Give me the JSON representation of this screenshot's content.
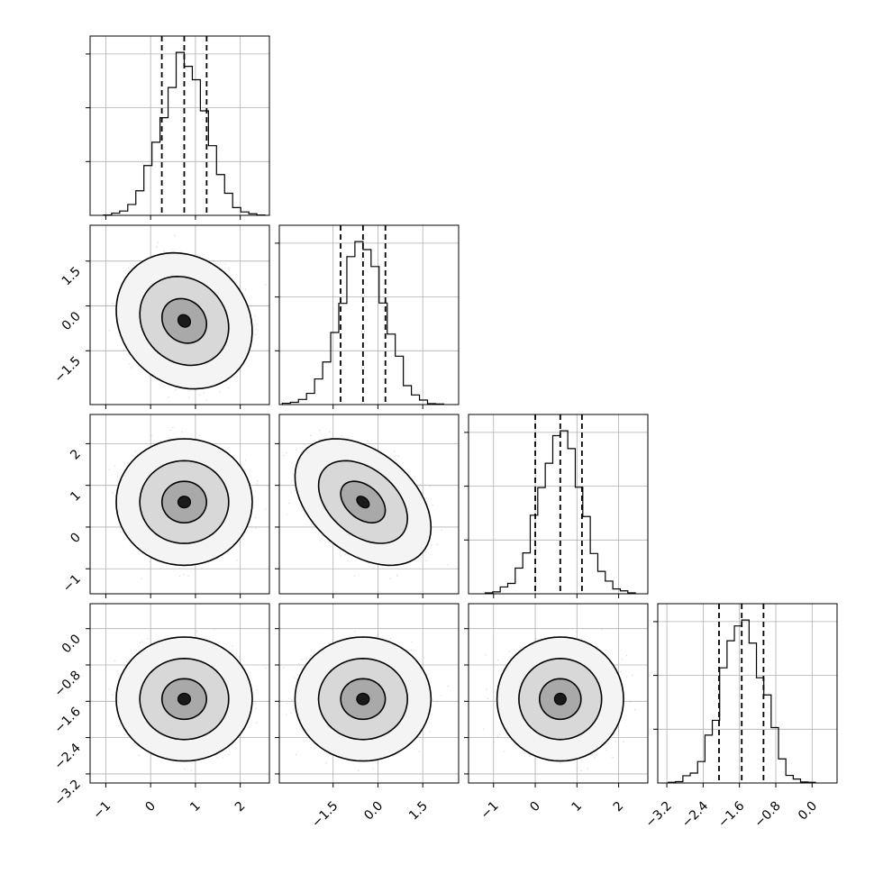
{
  "chart_data": {
    "type": "scatter",
    "grid": true,
    "parameters": [
      {
        "mean": 0.75,
        "sd": 0.5,
        "range": [
          -1.35,
          2.65
        ],
        "quantiles": [
          0.25,
          0.75,
          1.25
        ],
        "ticks": [
          -1,
          0,
          1,
          2
        ],
        "tick_labels": [
          "−1",
          "0",
          "1",
          "2"
        ]
      },
      {
        "mean": -0.5,
        "sd": 0.75,
        "range": [
          -3.3,
          2.7
        ],
        "quantiles": [
          -1.25,
          -0.5,
          0.25
        ],
        "ticks": [
          -1.5,
          0.0,
          1.5
        ],
        "tick_labels": [
          "−1.5",
          "0.0",
          "1.5"
        ]
      },
      {
        "mean": 0.6,
        "sd": 0.5,
        "range": [
          -1.6,
          2.7
        ],
        "quantiles": [
          0.0,
          0.6,
          1.12
        ],
        "ticks": [
          -1,
          0,
          1,
          2
        ],
        "tick_labels": [
          "−1",
          "0",
          "1",
          "2"
        ]
      },
      {
        "mean": -1.55,
        "sd": 0.45,
        "range": [
          -3.4,
          0.55
        ],
        "quantiles": [
          -2.05,
          -1.55,
          -1.07
        ],
        "ticks": [
          -3.2,
          -2.4,
          -1.6,
          -0.8,
          0.0
        ],
        "tick_labels": [
          "−3.2",
          "−2.4",
          "−1.6",
          "−0.8",
          "0.0"
        ]
      }
    ],
    "correlations": [
      {
        "pair": [
          0,
          1
        ],
        "rho": -0.15
      },
      {
        "pair": [
          0,
          2
        ],
        "rho": 0.0
      },
      {
        "pair": [
          0,
          3
        ],
        "rho": 0.0
      },
      {
        "pair": [
          1,
          2
        ],
        "rho": -0.4
      },
      {
        "pair": [
          1,
          3
        ],
        "rho": 0.0
      },
      {
        "pair": [
          2,
          3
        ],
        "rho": 0.0
      }
    ],
    "histogram_bins": 20,
    "contour_levels": [
      0.39,
      0.86,
      0.99
    ],
    "colors": {
      "line": "#000000",
      "scatter": "#808080",
      "grid": "#b0b0b0"
    }
  }
}
